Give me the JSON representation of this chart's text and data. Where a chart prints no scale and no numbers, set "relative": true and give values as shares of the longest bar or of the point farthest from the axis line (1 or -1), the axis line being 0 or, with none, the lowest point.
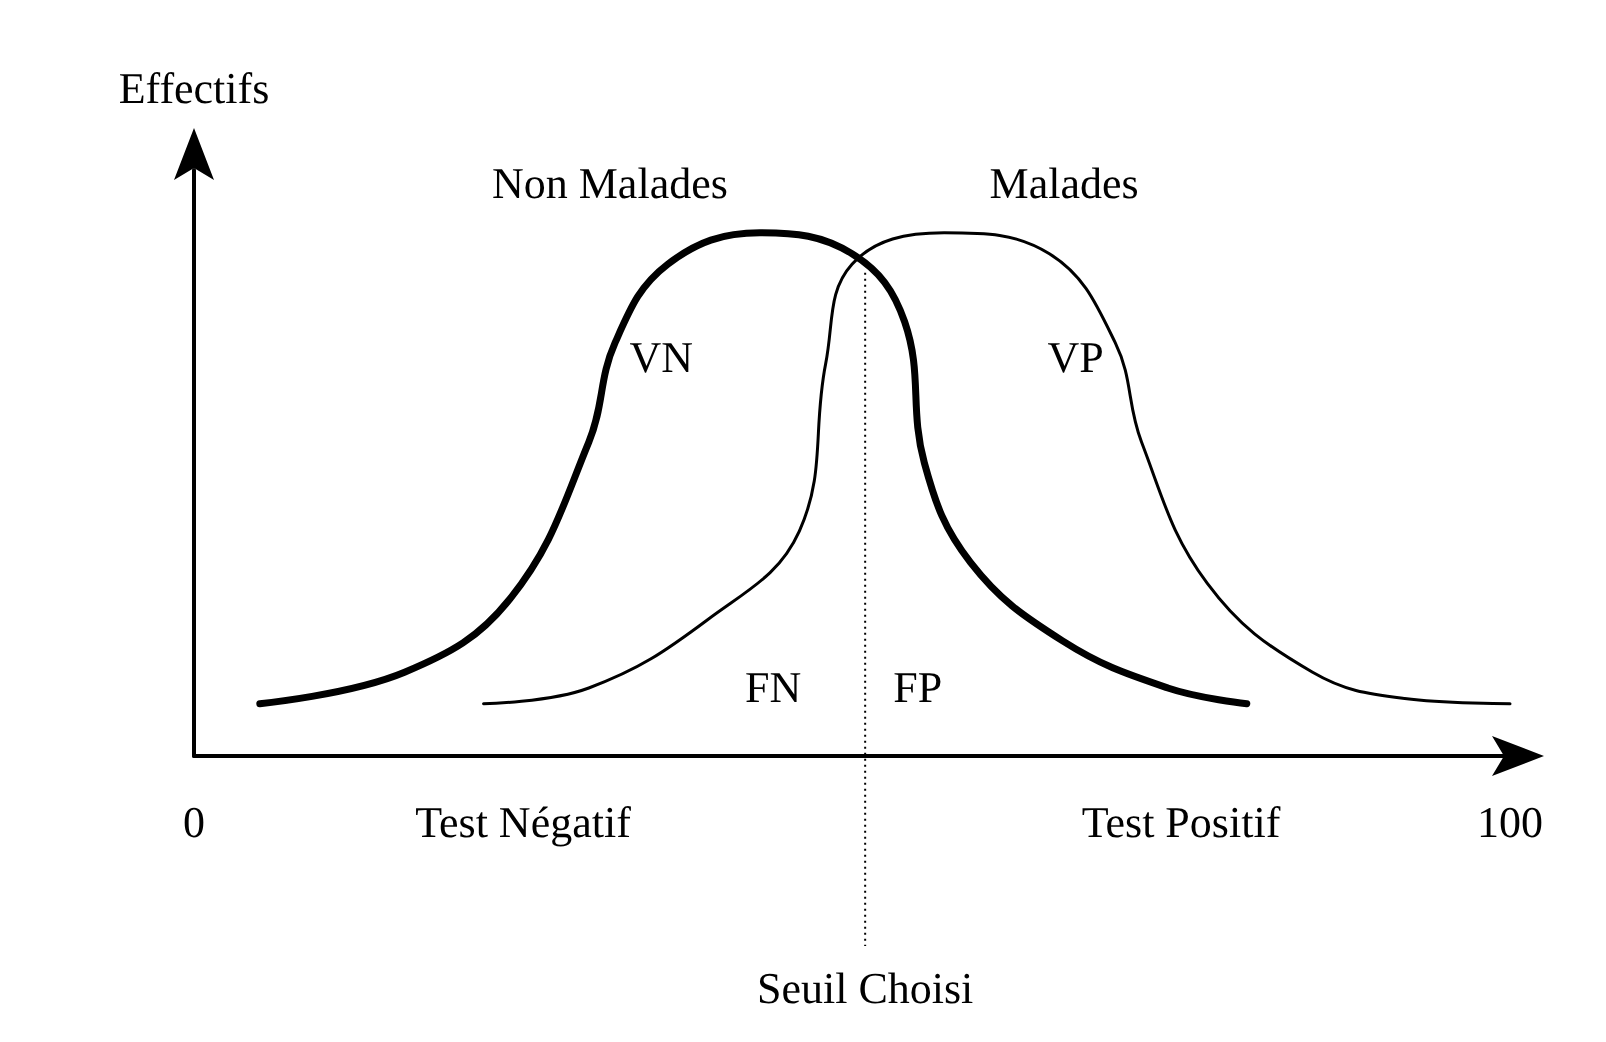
{
  "chart_data": {
    "type": "line",
    "relative": true,
    "ylabel": "Effectifs",
    "xlim": [
      0,
      100
    ],
    "xticks": [
      0,
      100
    ],
    "legend": false,
    "grid": false,
    "marker": "none",
    "line_style": "solid",
    "series": [
      {
        "name": "Non Malades",
        "color": "#000000",
        "x": [
          5,
          16,
          24,
          30,
          32,
          36,
          43,
          50,
          54,
          55.5,
          59,
          66,
          74,
          80
        ],
        "values": [
          0.1,
          0.16,
          0.3,
          0.6,
          0.79,
          0.94,
          1,
          0.96,
          0.83,
          0.56,
          0.37,
          0.22,
          0.13,
          0.1
        ]
      },
      {
        "name": "Malades",
        "color": "#000000",
        "x": [
          22,
          30,
          39,
          46,
          48,
          50,
          57,
          65,
          70,
          72,
          77,
          85,
          92,
          100
        ],
        "values": [
          0.1,
          0.13,
          0.26,
          0.43,
          0.75,
          0.94,
          1,
          0.96,
          0.79,
          0.6,
          0.33,
          0.16,
          0.11,
          0.1
        ]
      }
    ],
    "ref_lines": [
      {
        "axis": "x",
        "value": 51,
        "label": "Seuil Choisi",
        "line_style": "dotted"
      }
    ],
    "annotations": [
      "VN",
      "VP",
      "FN",
      "FP",
      "Test Négatif",
      "Test Positif"
    ]
  }
}
